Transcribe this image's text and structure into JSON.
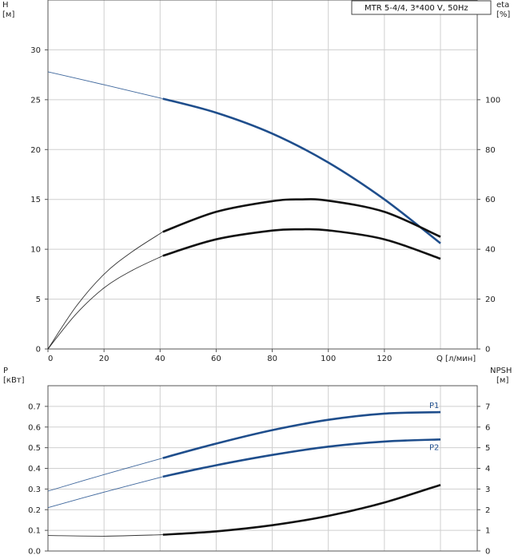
{
  "chart_data": [
    {
      "type": "line",
      "title": "MTR 5-4/4, 3*400 V, 50Hz",
      "xlabel": "Q [л/мин]",
      "ylabel_left": "H\n[м]",
      "ylabel_right": "eta\n[%]",
      "xlim": [
        0,
        140
      ],
      "ylim_left": [
        0,
        35
      ],
      "ylim_right": [
        0,
        140
      ],
      "x_ticks": [
        "0",
        "20",
        "40",
        "60",
        "80",
        "100",
        "120"
      ],
      "y_left_ticks": [
        "0",
        "5",
        "10",
        "15",
        "20",
        "25",
        "30"
      ],
      "y_right_ticks": [
        "0",
        "20",
        "40",
        "60",
        "80",
        "100"
      ],
      "grid": true,
      "series": [
        {
          "id": "H",
          "axis": "left",
          "color": "#1f4e8c",
          "x": [
            0,
            20,
            41,
            60,
            80,
            100,
            120,
            140
          ],
          "y": [
            27.8,
            26.5,
            25.1,
            23.7,
            21.6,
            18.7,
            15.0,
            10.6
          ],
          "solid_from": 41
        },
        {
          "id": "eta_upper",
          "axis": "right",
          "color": "#111111",
          "x": [
            0,
            10,
            20,
            30,
            41,
            60,
            80,
            90,
            100,
            120,
            140
          ],
          "y": [
            0,
            17,
            30,
            39,
            47,
            55,
            59.3,
            60,
            59.5,
            55,
            45
          ],
          "solid_from": 41
        },
        {
          "id": "eta_lower",
          "axis": "right",
          "color": "#111111",
          "x": [
            0,
            10,
            20,
            30,
            41,
            60,
            80,
            90,
            100,
            120,
            140
          ],
          "y": [
            0,
            14,
            24.5,
            31.5,
            37.4,
            44,
            47.5,
            48,
            47.6,
            44,
            36.2
          ],
          "solid_from": 41
        }
      ]
    },
    {
      "type": "line",
      "ylabel_left": "P\n[кВт]",
      "ylabel_right": "NPSH\n[м]",
      "xlim": [
        0,
        140
      ],
      "ylim_left": [
        0,
        0.8
      ],
      "ylim_right": [
        0,
        8
      ],
      "y_left_ticks": [
        "0.0",
        "0.1",
        "0.2",
        "0.3",
        "0.4",
        "0.5",
        "0.6",
        "0.7"
      ],
      "y_right_ticks": [
        "0",
        "1",
        "2",
        "3",
        "4",
        "5",
        "6",
        "7"
      ],
      "grid": true,
      "series": [
        {
          "id": "P1",
          "name": "P1",
          "axis": "left",
          "color": "#1f4e8c",
          "x": [
            0,
            20,
            41,
            60,
            80,
            100,
            120,
            140
          ],
          "y": [
            0.29,
            0.37,
            0.45,
            0.52,
            0.585,
            0.635,
            0.665,
            0.672
          ],
          "solid_from": 41
        },
        {
          "id": "P2",
          "name": "P2",
          "axis": "left",
          "color": "#1f4e8c",
          "x": [
            0,
            20,
            41,
            60,
            80,
            100,
            120,
            140
          ],
          "y": [
            0.21,
            0.285,
            0.36,
            0.415,
            0.465,
            0.505,
            0.53,
            0.54
          ],
          "solid_from": 41
        },
        {
          "id": "NPSH",
          "axis": "right",
          "color": "#111111",
          "x": [
            0,
            20,
            41,
            60,
            80,
            100,
            120,
            140
          ],
          "y": [
            0.75,
            0.72,
            0.79,
            0.95,
            1.25,
            1.7,
            2.35,
            3.2
          ],
          "solid_from": 41
        }
      ]
    }
  ]
}
